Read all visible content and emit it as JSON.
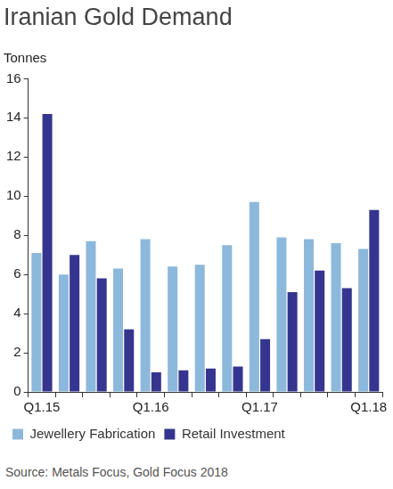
{
  "chart_data": {
    "type": "bar",
    "title": "Iranian Gold Demand",
    "y_label": "Tonnes",
    "source": "Source: Metals Focus, Gold Focus 2018",
    "categories": [
      "Q1.15",
      null,
      null,
      null,
      "Q1.16",
      null,
      null,
      null,
      "Q1.17",
      null,
      null,
      null,
      "Q1.18"
    ],
    "series": [
      {
        "name": "Jewellery Fabrication",
        "color": "#8cb8db",
        "values": [
          7.1,
          6.0,
          7.7,
          6.3,
          7.8,
          6.4,
          6.5,
          7.5,
          9.7,
          7.9,
          7.8,
          7.6,
          7.3
        ]
      },
      {
        "name": "Retail Investment",
        "color": "#35358f",
        "values": [
          14.2,
          7.0,
          5.8,
          3.2,
          1.0,
          1.1,
          1.2,
          1.3,
          2.7,
          5.1,
          6.2,
          5.3,
          9.3
        ]
      }
    ],
    "ylim": [
      0,
      16
    ],
    "yticks": [
      0,
      2,
      4,
      6,
      8,
      10,
      12,
      14,
      16
    ],
    "grid": false,
    "legend": "bottom"
  }
}
